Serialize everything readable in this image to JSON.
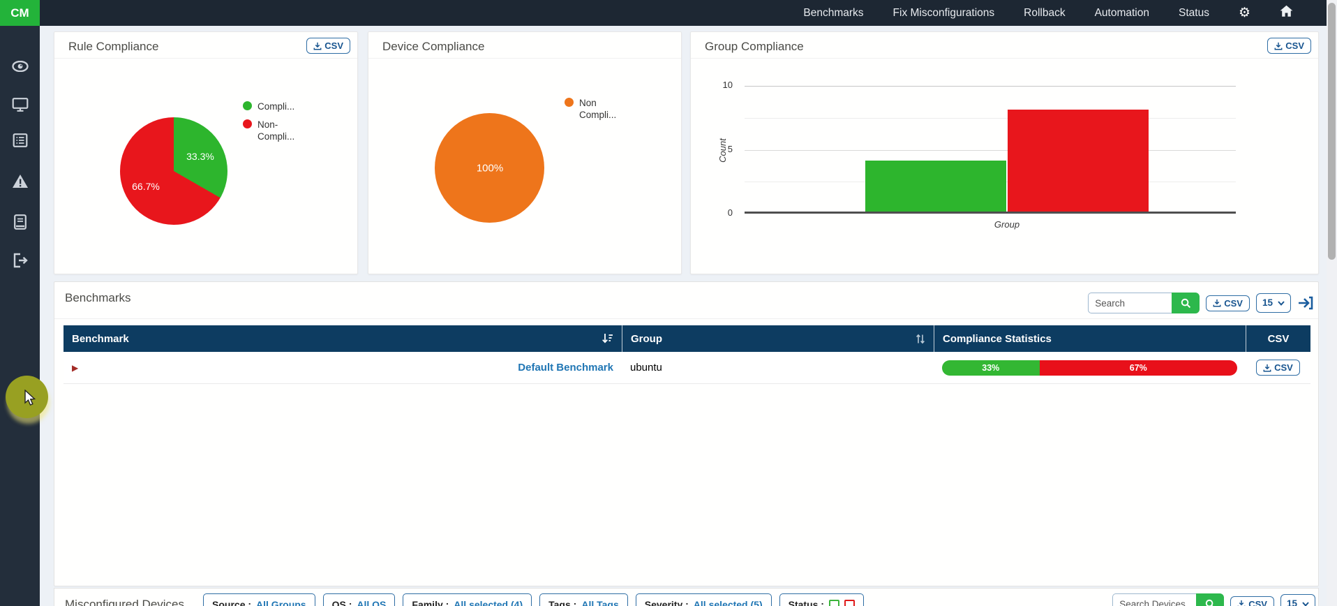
{
  "navbar": {
    "logo": "CM",
    "items": [
      "Benchmarks",
      "Fix Misconfigurations",
      "Rollback",
      "Automation",
      "Status"
    ],
    "icons": [
      "gear-icon",
      "home-icon"
    ]
  },
  "sidebar": {
    "icons": [
      "eye-icon",
      "monitor-icon",
      "list-icon",
      "warning-icon",
      "book-icon",
      "logout-icon"
    ]
  },
  "cards": {
    "rule": {
      "title": "Rule Compliance",
      "csv_label": "CSV",
      "labels": [
        "33.3%",
        "66.7%"
      ],
      "legend": [
        {
          "line1": "Compli...",
          "line2": "",
          "color": "#2db52d"
        },
        {
          "line1": "Non-",
          "line2": "Compli...",
          "color": "#e8161c"
        }
      ]
    },
    "device": {
      "title": "Device Compliance",
      "center_label": "100%",
      "legend": [
        {
          "line1": "Non",
          "line2": "Compli...",
          "color": "#ee751b"
        }
      ]
    },
    "group": {
      "title": "Group Compliance",
      "csv_label": "CSV",
      "ylabel": "Count",
      "xlabel": "Group",
      "yticks": [
        "10",
        "5",
        "0"
      ]
    }
  },
  "benchmarks": {
    "title": "Benchmarks",
    "search_placeholder": "Search",
    "csv_label": "CSV",
    "page_size": "15",
    "columns": [
      "Benchmark",
      "Group",
      "Compliance Statistics",
      "CSV"
    ],
    "row": {
      "name": "Default Benchmark",
      "group": "ubuntu",
      "csv_label": "CSV",
      "stats": [
        {
          "label": "33%",
          "value": 33,
          "color": "#33b733"
        },
        {
          "label": "67%",
          "value": 67,
          "color": "#e8101a"
        }
      ]
    }
  },
  "misconfigured": {
    "title": "Misconfigured Devices",
    "filters": [
      {
        "label": "Source :",
        "value": "All Groups"
      },
      {
        "label": "OS :",
        "value": "All OS"
      },
      {
        "label": "Family :",
        "value": "All selected (4)"
      },
      {
        "label": "Tags :",
        "value": "All Tags"
      },
      {
        "label": "Severity :",
        "value": "All selected (5)"
      }
    ],
    "status_label": "Status :",
    "search_placeholder": "Search Devices",
    "csv_label": "CSV",
    "page_size": "15"
  },
  "chart_data": [
    {
      "type": "pie",
      "title": "Rule Compliance",
      "slices": [
        {
          "label": "Compliant",
          "value": 33.3,
          "color": "#2db52d"
        },
        {
          "label": "Non-Compliant",
          "value": 66.7,
          "color": "#e8161c"
        }
      ],
      "data_labels": [
        "33.3%",
        "66.7%"
      ],
      "legend_position": "right"
    },
    {
      "type": "pie",
      "title": "Device Compliance",
      "slices": [
        {
          "label": "Non Compliant",
          "value": 100,
          "color": "#ee751b"
        }
      ],
      "data_labels": [
        "100%"
      ],
      "legend_position": "right"
    },
    {
      "type": "bar",
      "title": "Group Compliance",
      "xlabel": "Group",
      "ylabel": "Count",
      "ylim": [
        0,
        10
      ],
      "yticks": [
        0,
        5,
        10
      ],
      "categories": [
        "Group"
      ],
      "grid": true,
      "series": [
        {
          "name": "Compliant",
          "value": 4,
          "color": "#2db52d"
        },
        {
          "name": "Non-Compliant",
          "value": 8,
          "color": "#e8161c"
        }
      ]
    }
  ]
}
